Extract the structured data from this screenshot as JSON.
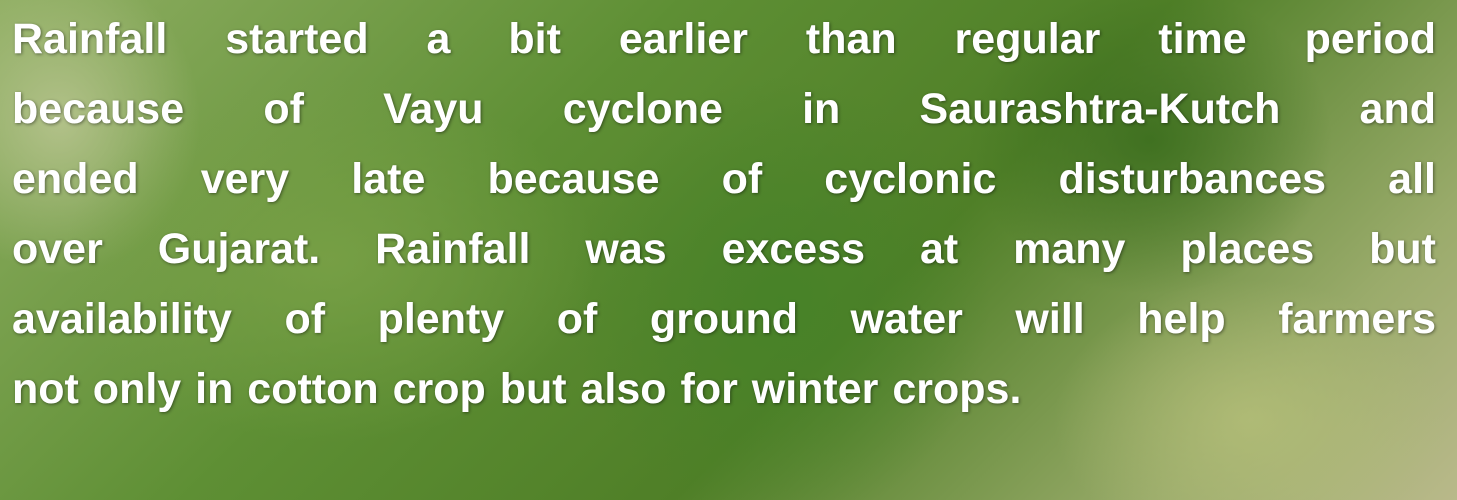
{
  "paragraph": {
    "lines": [
      "Rainfall started a bit earlier than regular time period",
      "because of Vayu cyclone in Saurashtra-Kutch and",
      "ended very late because of cyclonic disturbances all",
      "over Gujarat. Rainfall was excess at many places but",
      "availability of plenty of ground water will help farmers",
      "not only in cotton crop but also for winter crops."
    ]
  }
}
